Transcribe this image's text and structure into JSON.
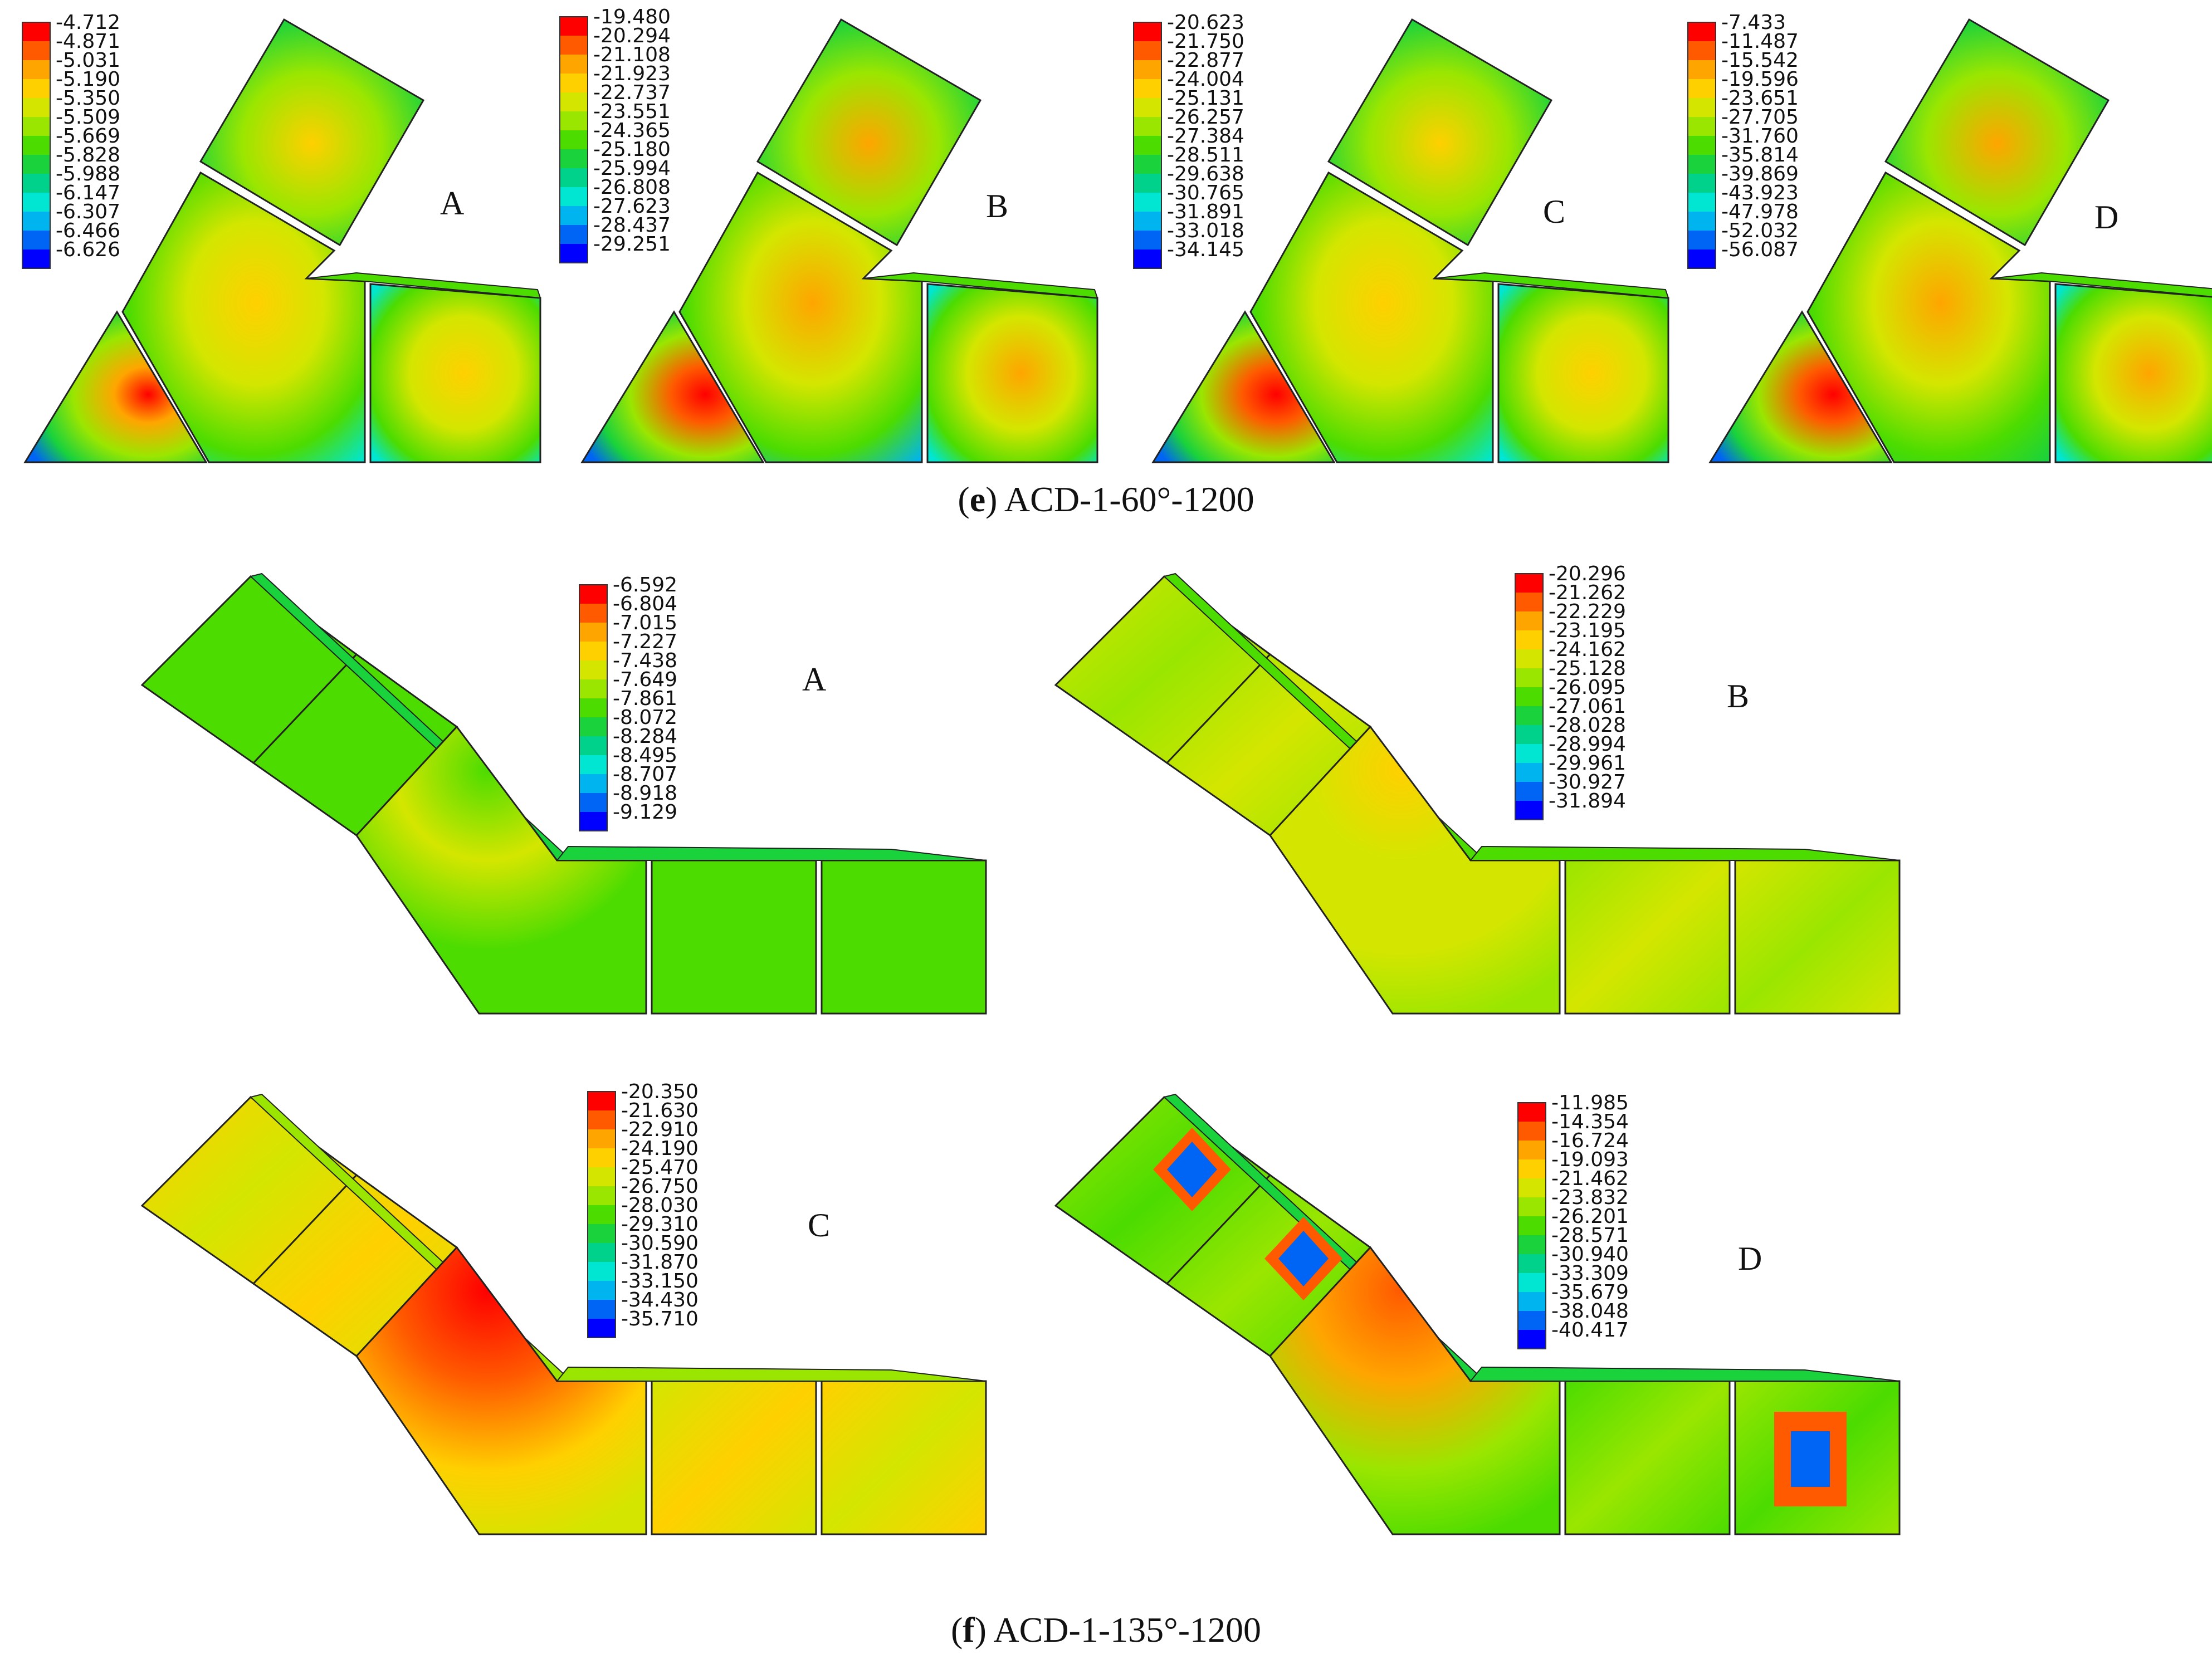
{
  "captions": [
    {
      "label": "e",
      "text": "ACD-1-60°-1200"
    },
    {
      "label": "f",
      "text": "ACD-1-135°-1200"
    }
  ],
  "panels": [
    {
      "letter": "A",
      "shape": "triangle",
      "legend": [
        "-4.712",
        "-4.871",
        "-5.031",
        "-5.190",
        "-5.350",
        "-5.509",
        "-5.669",
        "-5.828",
        "-5.988",
        "-6.147",
        "-6.307",
        "-6.466",
        "-6.626"
      ]
    },
    {
      "letter": "B",
      "shape": "triangle",
      "legend": [
        "-19.480",
        "-20.294",
        "-21.108",
        "-21.923",
        "-22.737",
        "-23.551",
        "-24.365",
        "-25.180",
        "-25.994",
        "-26.808",
        "-27.623",
        "-28.437",
        "-29.251"
      ]
    },
    {
      "letter": "C",
      "shape": "triangle",
      "legend": [
        "-20.623",
        "-21.750",
        "-22.877",
        "-24.004",
        "-25.131",
        "-26.257",
        "-27.384",
        "-28.511",
        "-29.638",
        "-30.765",
        "-31.891",
        "-33.018",
        "-34.145"
      ]
    },
    {
      "letter": "D",
      "shape": "triangle",
      "legend": [
        "-7.433",
        "-11.487",
        "-15.542",
        "-19.596",
        "-23.651",
        "-27.705",
        "-31.760",
        "-35.814",
        "-39.869",
        "-43.923",
        "-47.978",
        "-52.032",
        "-56.087"
      ]
    },
    {
      "letter": "A",
      "shape": "angle",
      "legend": [
        "-6.592",
        "-6.804",
        "-7.015",
        "-7.227",
        "-7.438",
        "-7.649",
        "-7.861",
        "-8.072",
        "-8.284",
        "-8.495",
        "-8.707",
        "-8.918",
        "-9.129"
      ]
    },
    {
      "letter": "B",
      "shape": "angle",
      "legend": [
        "-20.296",
        "-21.262",
        "-22.229",
        "-23.195",
        "-24.162",
        "-25.128",
        "-26.095",
        "-27.061",
        "-28.028",
        "-28.994",
        "-29.961",
        "-30.927",
        "-31.894"
      ]
    },
    {
      "letter": "C",
      "shape": "angle",
      "legend": [
        "-20.350",
        "-21.630",
        "-22.910",
        "-24.190",
        "-25.470",
        "-26.750",
        "-28.030",
        "-29.310",
        "-30.590",
        "-31.870",
        "-33.150",
        "-34.430",
        "-35.710"
      ]
    },
    {
      "letter": "D",
      "shape": "angle",
      "legend": [
        "-11.985",
        "-14.354",
        "-16.724",
        "-19.093",
        "-21.462",
        "-23.832",
        "-26.201",
        "-28.571",
        "-30.940",
        "-33.309",
        "-35.679",
        "-38.048",
        "-40.417"
      ]
    }
  ],
  "colors": {
    "contour_scale": [
      "#ff0000",
      "#ff5a00",
      "#ffa500",
      "#ffd000",
      "#d4e600",
      "#9ae600",
      "#4cdc00",
      "#19d23c",
      "#00d28c",
      "#00e6d2",
      "#00b4f0",
      "#0064f5",
      "#0000ff"
    ],
    "outline": "#222222"
  }
}
